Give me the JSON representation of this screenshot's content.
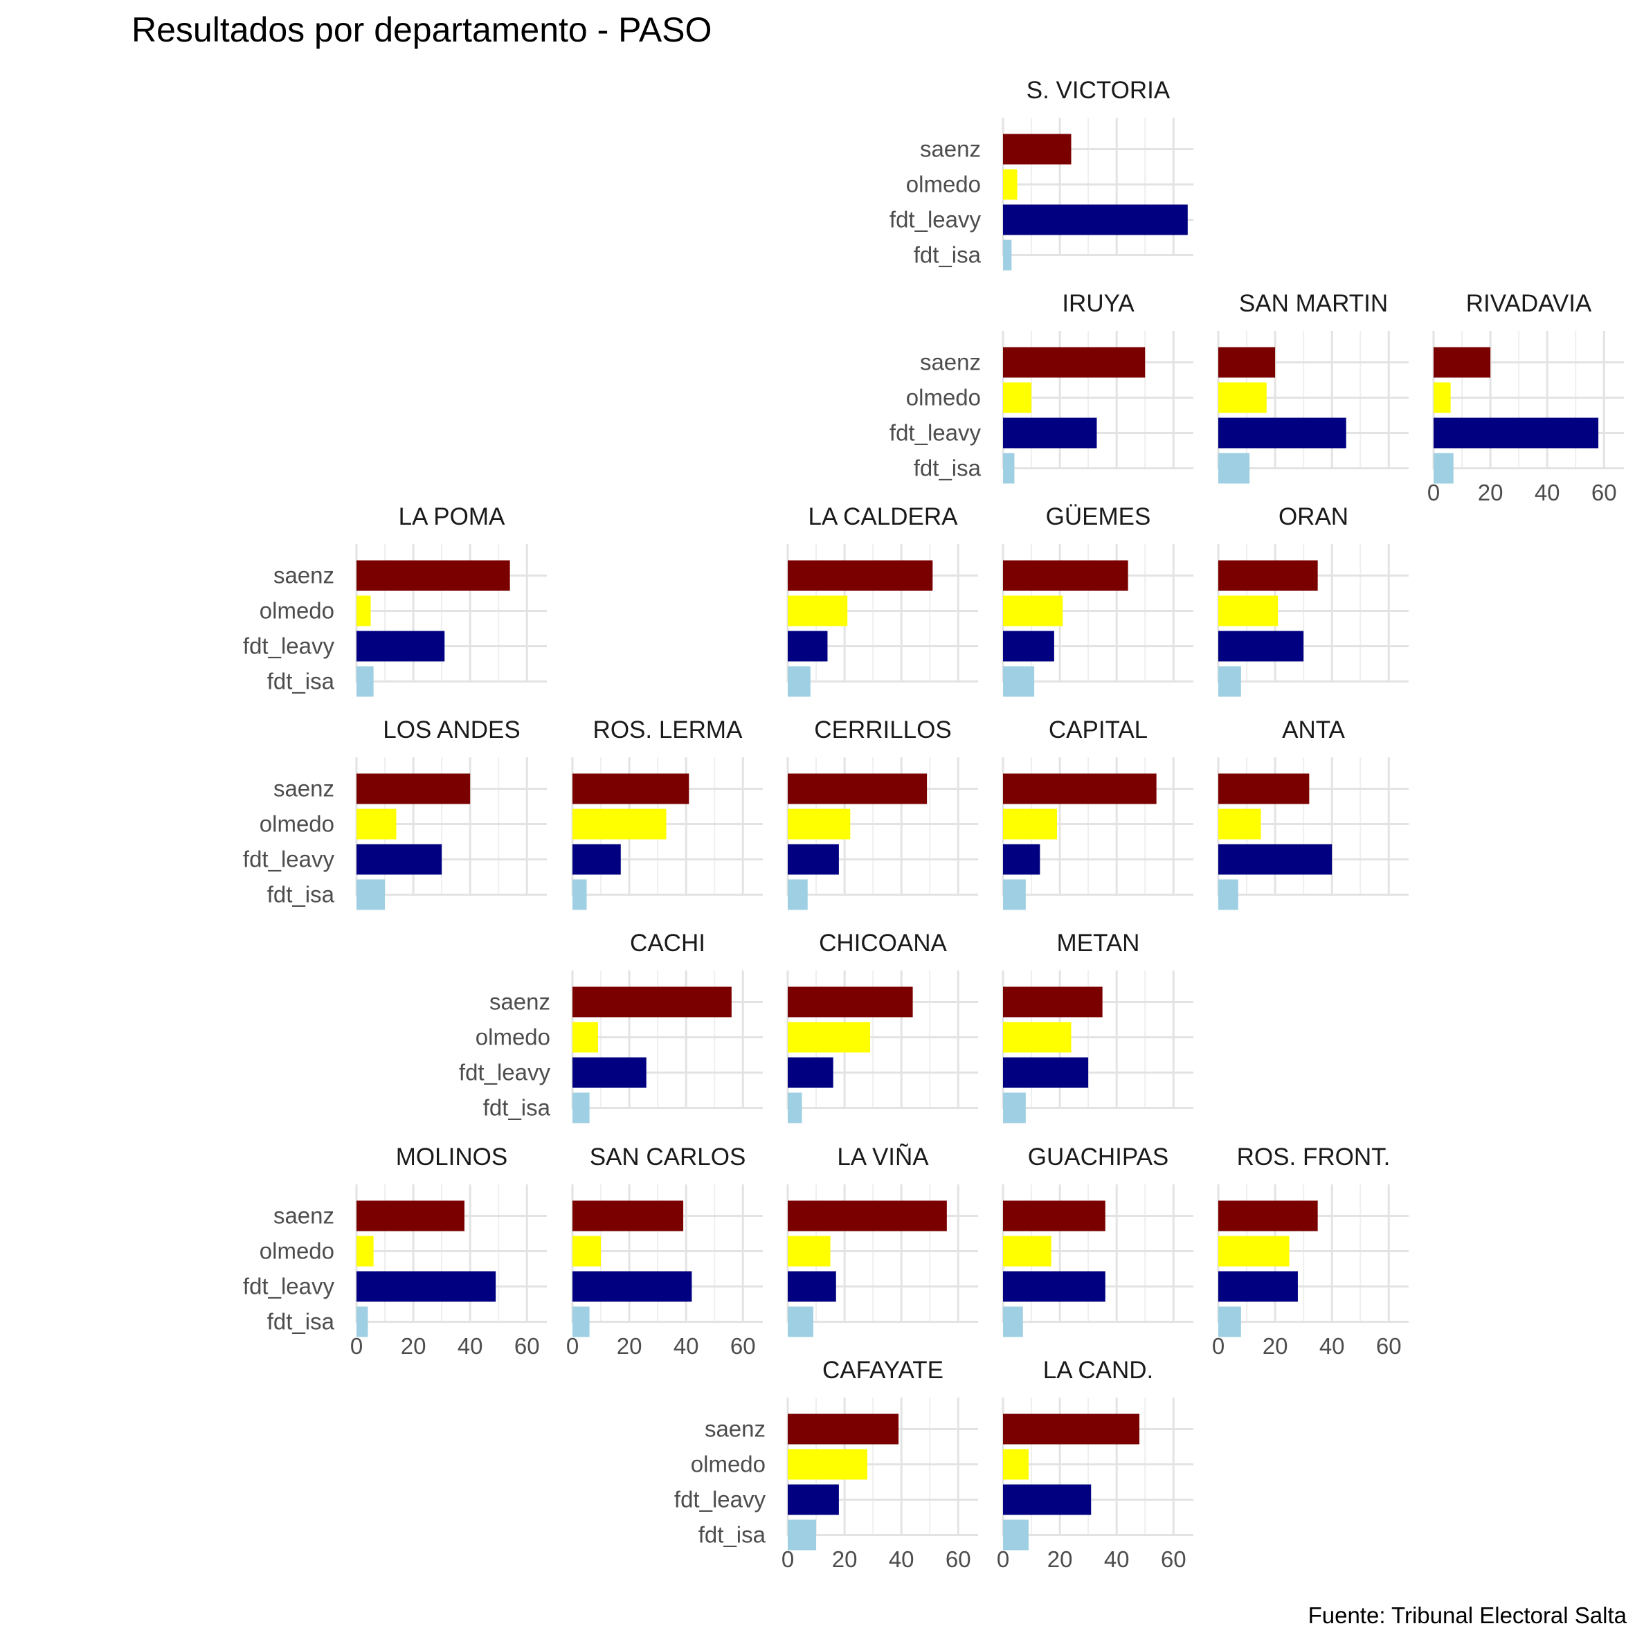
{
  "chart_data": {
    "type": "bar",
    "orientation": "horizontal",
    "title": "Resultados por departamento - PASO",
    "caption": "Fuente: Tribunal Electoral Salta",
    "categories": [
      "saenz",
      "olmedo",
      "fdt_leavy",
      "fdt_isa"
    ],
    "colors": {
      "saenz": "#7a0000",
      "olmedo": "#ffff00",
      "fdt_leavy": "#000080",
      "fdt_isa": "#9ecfe2"
    },
    "xlim": [
      0,
      67
    ],
    "xticks": [
      0,
      20,
      40,
      60
    ],
    "grid": true,
    "panels": [
      {
        "name": "S. VICTORIA",
        "row": 0,
        "col": 3,
        "values": [
          24,
          5,
          65,
          3
        ]
      },
      {
        "name": "IRUYA",
        "row": 1,
        "col": 3,
        "values": [
          50,
          10,
          33,
          4
        ]
      },
      {
        "name": "SAN MARTIN",
        "row": 1,
        "col": 4,
        "values": [
          20,
          17,
          45,
          11
        ]
      },
      {
        "name": "RIVADAVIA",
        "row": 1,
        "col": 5,
        "values": [
          20,
          6,
          58,
          7
        ]
      },
      {
        "name": "LA POMA",
        "row": 2,
        "col": 0,
        "values": [
          54,
          5,
          31,
          6
        ]
      },
      {
        "name": "LA CALDERA",
        "row": 2,
        "col": 2,
        "values": [
          51,
          21,
          14,
          8
        ]
      },
      {
        "name": "GÜEMES",
        "row": 2,
        "col": 3,
        "values": [
          44,
          21,
          18,
          11
        ]
      },
      {
        "name": "ORAN",
        "row": 2,
        "col": 4,
        "values": [
          35,
          21,
          30,
          8
        ]
      },
      {
        "name": "LOS ANDES",
        "row": 3,
        "col": 0,
        "values": [
          40,
          14,
          30,
          10
        ]
      },
      {
        "name": "ROS. LERMA",
        "row": 3,
        "col": 1,
        "values": [
          41,
          33,
          17,
          5
        ]
      },
      {
        "name": "CERRILLOS",
        "row": 3,
        "col": 2,
        "values": [
          49,
          22,
          18,
          7
        ]
      },
      {
        "name": "CAPITAL",
        "row": 3,
        "col": 3,
        "values": [
          54,
          19,
          13,
          8
        ]
      },
      {
        "name": "ANTA",
        "row": 3,
        "col": 4,
        "values": [
          32,
          15,
          40,
          7
        ]
      },
      {
        "name": "CACHI",
        "row": 4,
        "col": 1,
        "values": [
          56,
          9,
          26,
          6
        ]
      },
      {
        "name": "CHICOANA",
        "row": 4,
        "col": 2,
        "values": [
          44,
          29,
          16,
          5
        ]
      },
      {
        "name": "METAN",
        "row": 4,
        "col": 3,
        "values": [
          35,
          24,
          30,
          8
        ]
      },
      {
        "name": "MOLINOS",
        "row": 5,
        "col": 0,
        "values": [
          38,
          6,
          49,
          4
        ]
      },
      {
        "name": "SAN CARLOS",
        "row": 5,
        "col": 1,
        "values": [
          39,
          10,
          42,
          6
        ]
      },
      {
        "name": "LA VIÑA",
        "row": 5,
        "col": 2,
        "values": [
          56,
          15,
          17,
          9
        ]
      },
      {
        "name": "GUACHIPAS",
        "row": 5,
        "col": 3,
        "values": [
          36,
          17,
          36,
          7
        ]
      },
      {
        "name": "ROS. FRONT.",
        "row": 5,
        "col": 4,
        "values": [
          35,
          25,
          28,
          8
        ]
      },
      {
        "name": "CAFAYATE",
        "row": 6,
        "col": 2,
        "values": [
          39,
          28,
          18,
          10
        ]
      },
      {
        "name": "LA CAND.",
        "row": 6,
        "col": 3,
        "values": [
          48,
          9,
          31,
          9
        ]
      }
    ],
    "x_axis_panels": [
      "RIVADAVIA",
      "MOLINOS",
      "SAN CARLOS",
      "ROS. FRONT.",
      "CAFAYATE",
      "LA CAND."
    ]
  }
}
